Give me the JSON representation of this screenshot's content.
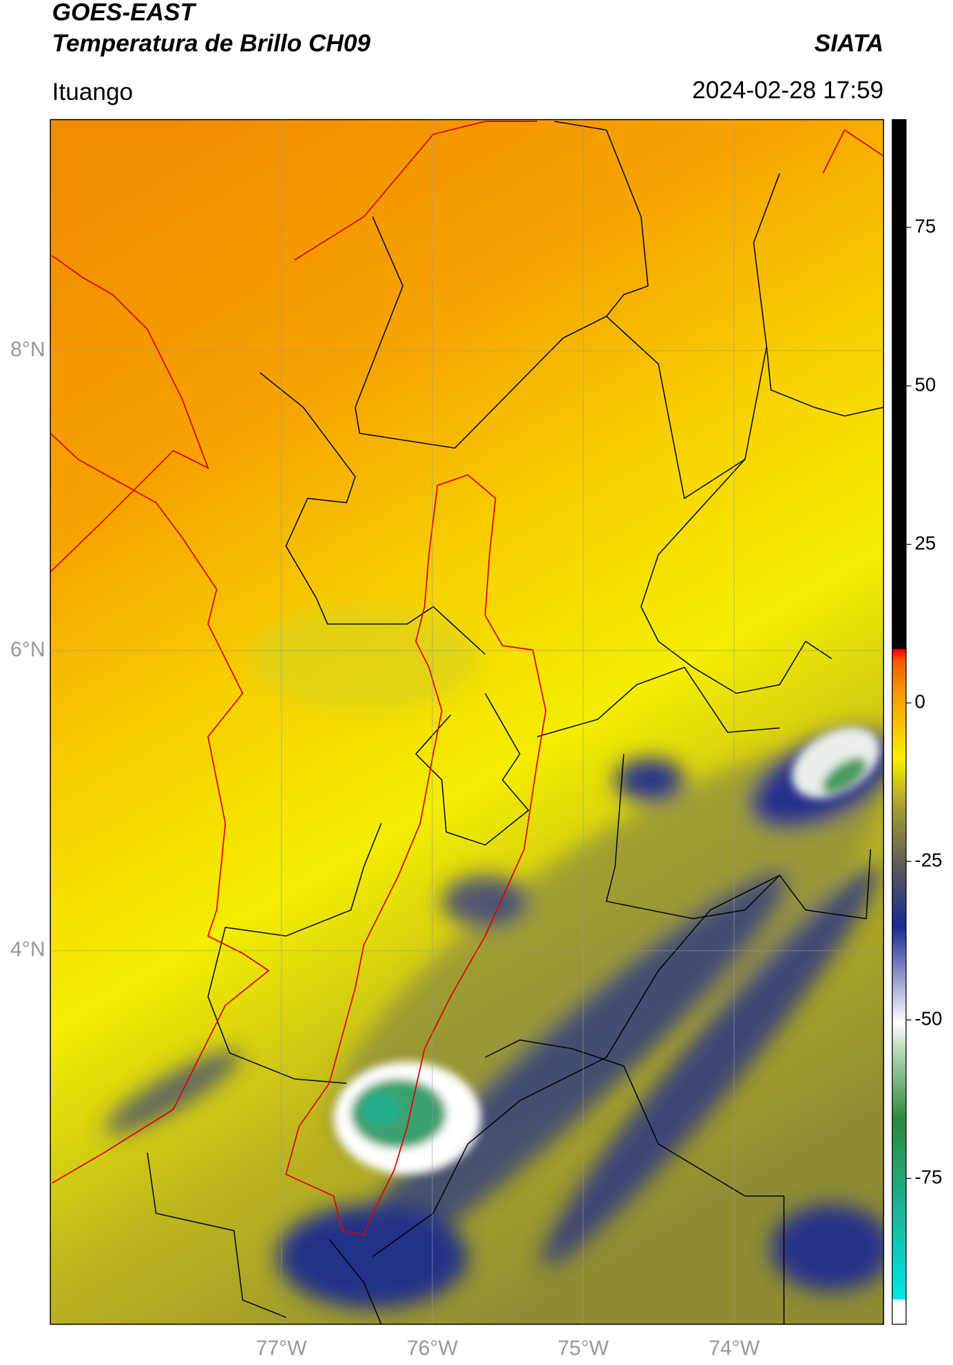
{
  "chart_data": {
    "type": "map",
    "title": "GOES-EAST",
    "subtitle": "Temperatura de Brillo CH09",
    "organization": "SIATA",
    "location": "Ituango",
    "datetime": "2024-02-28 17:59",
    "xlim": [
      -78.53,
      -73.01
    ],
    "ylim": [
      1.51,
      9.54
    ],
    "xticks": [
      {
        "value": -77,
        "label": "77°W"
      },
      {
        "value": -76,
        "label": "76°W"
      },
      {
        "value": -75,
        "label": "75°W"
      },
      {
        "value": -74,
        "label": "74°W"
      }
    ],
    "yticks": [
      {
        "value": 8,
        "label": "8°N"
      },
      {
        "value": 6,
        "label": "6°N"
      },
      {
        "value": 4,
        "label": "4°N"
      }
    ],
    "grid": true,
    "colorbar_lim": [
      -98,
      92
    ],
    "colorbar_ticks": [
      75,
      50,
      25,
      0,
      -25,
      -50,
      -75
    ]
  }
}
